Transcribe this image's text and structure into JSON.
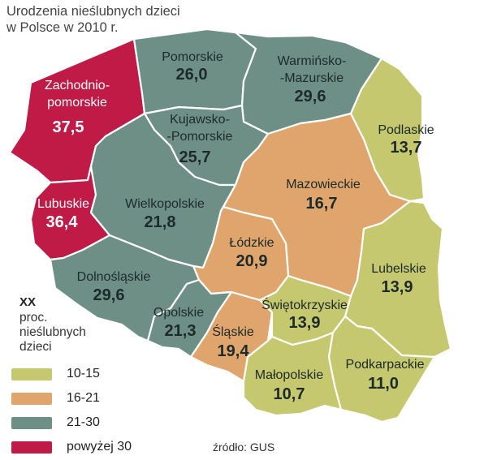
{
  "title": "Urodzenia nieślubnych dzieci w Polsce w 2010 r.",
  "colors": {
    "10-15": "#c5c86e",
    "16-21": "#dfa56c",
    "21-30": "#6e8f86",
    "powyzej_30": "#bf1b46",
    "border": "#ffffff"
  },
  "regions": [
    {
      "name": "Zachodnio-\npomorskie",
      "name_line1": "Zachodnio-",
      "name_line2": "pomorskie",
      "value": "37,5",
      "class": "powyżej 30"
    },
    {
      "name": "Pomorskie",
      "value": "26,0",
      "class": "21-30"
    },
    {
      "name": "Warmińsko-\n-Mazurskie",
      "name_line1": "Warmińsko-",
      "name_line2": "-Mazurskie",
      "value": "29,6",
      "class": "21-30"
    },
    {
      "name": "Podlaskie",
      "value": "13,7",
      "class": "10-15"
    },
    {
      "name": "Kujawsko-\n-Pomorskie",
      "name_line1": "Kujawsko-",
      "name_line2": "-Pomorskie",
      "value": "25,7",
      "class": "21-30"
    },
    {
      "name": "Lubuskie",
      "value": "36,4",
      "class": "powyżej 30"
    },
    {
      "name": "Wielkopolskie",
      "value": "21,8",
      "class": "21-30"
    },
    {
      "name": "Mazowieckie",
      "value": "16,7",
      "class": "16-21"
    },
    {
      "name": "Łódzkie",
      "value": "20,9",
      "class": "16-21"
    },
    {
      "name": "Lubelskie",
      "value": "13,9",
      "class": "10-15"
    },
    {
      "name": "Dolnośląskie",
      "value": "29,6",
      "class": "21-30"
    },
    {
      "name": "Opolskie",
      "value": "21,3",
      "class": "21-30"
    },
    {
      "name": "Śląskie",
      "value": "19,4",
      "class": "16-21"
    },
    {
      "name": "Świętokrzyskie",
      "value": "13,9",
      "class": "10-15"
    },
    {
      "name": "Małopolskie",
      "value": "10,7",
      "class": "10-15"
    },
    {
      "name": "Podkarpackie",
      "value": "11,0",
      "class": "10-15"
    }
  ],
  "legend": {
    "key": "XX",
    "description": "proc. nieślubnych dzieci",
    "items": [
      {
        "label": "10-15",
        "color": "#c5c86e"
      },
      {
        "label": "16-21",
        "color": "#dfa56c"
      },
      {
        "label": "21-30",
        "color": "#6e8f86"
      },
      {
        "label": "powyżej 30",
        "color": "#bf1b46"
      }
    ]
  },
  "source": "źródło: GUS"
}
